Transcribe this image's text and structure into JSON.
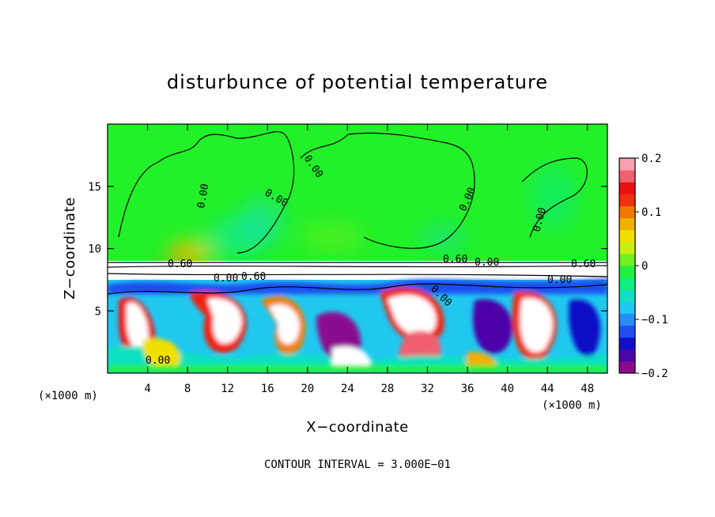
{
  "chart_data": {
    "type": "heatmap",
    "title": "disturbunce of potential temperature",
    "xlabel": "X−coordinate",
    "ylabel": "Z−coordinate",
    "x_unit": "(×1000 m)",
    "y_unit": "(×1000 m)",
    "x_ticks": [
      4,
      8,
      12,
      16,
      20,
      24,
      28,
      32,
      36,
      40,
      44,
      48
    ],
    "y_ticks": [
      5,
      10,
      15
    ],
    "xlim": [
      0,
      50
    ],
    "ylim": [
      0,
      20
    ],
    "colorbar": {
      "ticks": [
        "0.2",
        "0.1",
        "0",
        "−0.1",
        "−0.2"
      ],
      "values": [
        0.2,
        0.1,
        0,
        -0.1,
        -0.2
      ],
      "range": [
        -0.2,
        0.2
      ],
      "colors": [
        "#8b0a8f",
        "#4b06a8",
        "#1010c8",
        "#1f4ff0",
        "#2a8cf5",
        "#1ec8f0",
        "#10e0c0",
        "#10f080",
        "#20f040",
        "#70f020",
        "#c8f010",
        "#f0e000",
        "#f0b000",
        "#f07800",
        "#f03010",
        "#e81010",
        "#f06070",
        "#f8a0b0"
      ]
    },
    "contour_labels": [
      "0.00",
      "0.00",
      "0.00",
      "0.00",
      "0.00",
      "0.00",
      "0.60",
      "0.60",
      "0.60",
      "0.60",
      "0.00",
      "0.00",
      "0.00",
      "0.00"
    ],
    "contour_interval_note": "CONTOUR INTERVAL = 3.000E−01"
  }
}
